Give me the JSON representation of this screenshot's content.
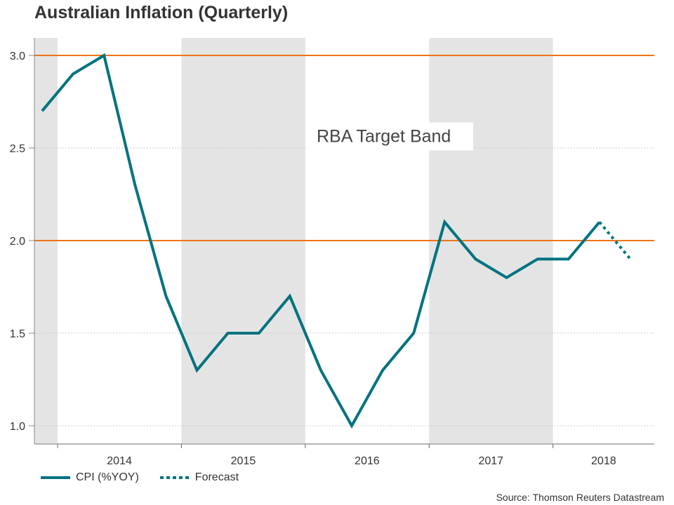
{
  "title": "Australian Inflation (Quarterly)",
  "source": "Source: Thomson Reuters Datastream",
  "colors": {
    "series": "#00737f",
    "target_band": "#f07319",
    "shade": "#e4e4e4",
    "axis": "#b5b5b5",
    "grid": "#cccccc"
  },
  "legend": [
    {
      "label": "CPI (%YOY)",
      "style": "solid"
    },
    {
      "label": "Forecast",
      "style": "dotted"
    }
  ],
  "chart_data": {
    "type": "line",
    "title": "Australian Inflation (Quarterly)",
    "xlabel": "",
    "ylabel": "",
    "ylim": [
      0.9,
      3.1
    ],
    "yticks": [
      1.0,
      1.5,
      2.0,
      2.5,
      3.0
    ],
    "ytick_labels": [
      "1.0",
      "1.5",
      "2.0",
      "2.5",
      "3.0"
    ],
    "x_categories": [
      "2014",
      "2015",
      "2016",
      "2017",
      "2018"
    ],
    "x_start_quarter": "2013-Q4",
    "shaded_years": [
      "2013",
      "2015",
      "2017"
    ],
    "grid": "horizontal dotted",
    "legend_position": "bottom-left",
    "reference_lines": [
      {
        "value": 3.0,
        "label": "RBA Target Band upper"
      },
      {
        "value": 2.0,
        "label": "RBA Target Band lower"
      }
    ],
    "annotations": [
      {
        "text": "RBA Target Band",
        "x": "2016-Q1",
        "y": 2.57
      }
    ],
    "series": [
      {
        "name": "CPI (%YOY)",
        "style": "solid",
        "x": [
          "2013-Q4",
          "2014-Q1",
          "2014-Q2",
          "2014-Q3",
          "2014-Q4",
          "2015-Q1",
          "2015-Q2",
          "2015-Q3",
          "2015-Q4",
          "2016-Q1",
          "2016-Q2",
          "2016-Q3",
          "2016-Q4",
          "2017-Q1",
          "2017-Q2",
          "2017-Q3",
          "2017-Q4",
          "2018-Q1",
          "2018-Q2"
        ],
        "values": [
          2.7,
          2.9,
          3.0,
          2.3,
          1.7,
          1.3,
          1.5,
          1.5,
          1.7,
          1.3,
          1.0,
          1.3,
          1.5,
          2.1,
          1.9,
          1.8,
          1.9,
          1.9,
          2.1
        ]
      },
      {
        "name": "Forecast",
        "style": "dotted",
        "x": [
          "2018-Q2",
          "2018-Q3"
        ],
        "values": [
          2.1,
          1.9
        ]
      }
    ]
  }
}
